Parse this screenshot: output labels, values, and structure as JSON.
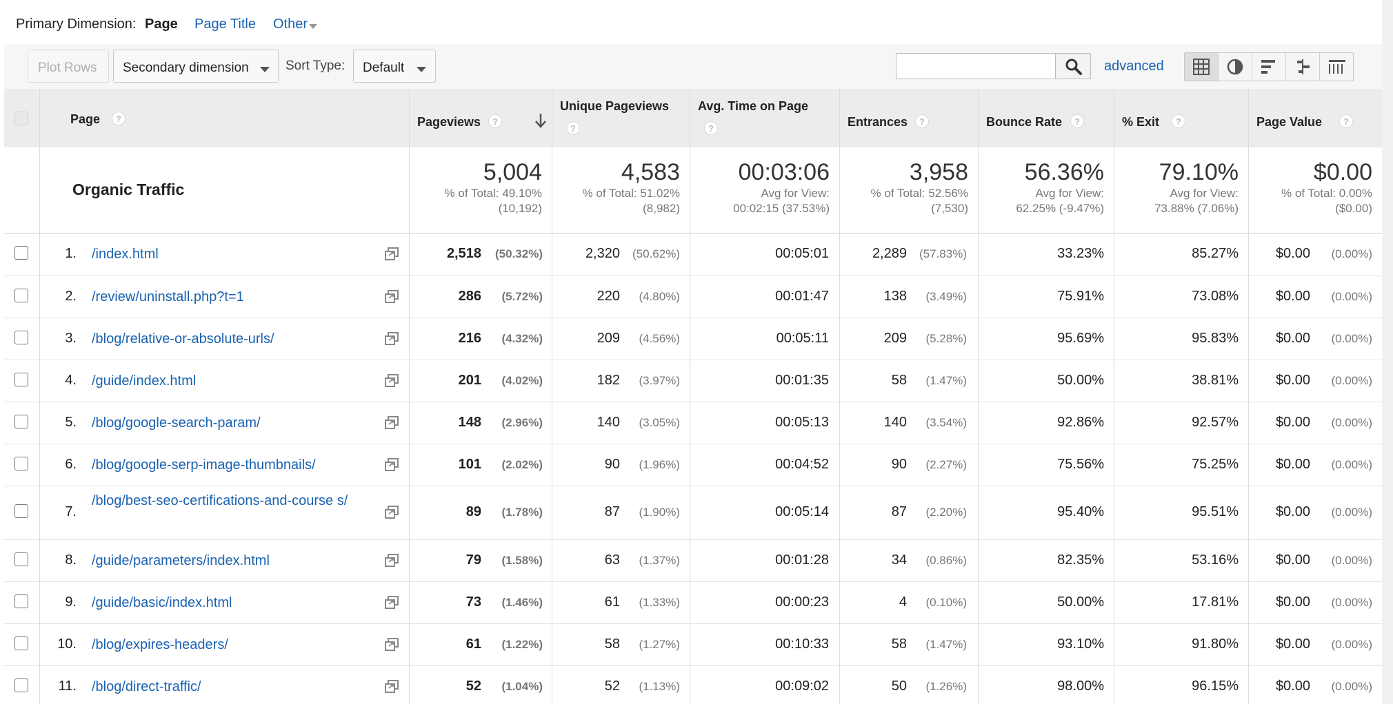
{
  "primary_dimension": {
    "label": "Primary Dimension:",
    "current": "Page",
    "options": [
      "Page Title",
      "Other"
    ]
  },
  "toolbar": {
    "plot_rows": "Plot Rows",
    "secondary_dimension": "Secondary dimension",
    "sort_type_label": "Sort Type:",
    "sort_type_value": "Default",
    "search_value": "",
    "advanced": "advanced",
    "view_icons": [
      "table-view-icon",
      "pie-view-icon",
      "bar-view-icon",
      "comparison-view-icon",
      "pivot-view-icon"
    ]
  },
  "headers": {
    "page": "Page",
    "pageviews": "Pageviews",
    "unique_pageviews": "Unique Pageviews",
    "avg_time": "Avg. Time on Page",
    "entrances": "Entrances",
    "bounce_rate": "Bounce Rate",
    "exit": "% Exit",
    "page_value": "Page Value",
    "help_mark": "?"
  },
  "totals": {
    "label": "Organic Traffic",
    "pageviews": {
      "value": "5,004",
      "line1": "% of Total: 49.10%",
      "line2": "(10,192)"
    },
    "unique_pageviews": {
      "value": "4,583",
      "line1": "% of Total: 51.02%",
      "line2": "(8,982)"
    },
    "avg_time": {
      "value": "00:03:06",
      "line1": "Avg for View:",
      "line2": "00:02:15 (37.53%)"
    },
    "entrances": {
      "value": "3,958",
      "line1": "% of Total: 52.56%",
      "line2": "(7,530)"
    },
    "bounce_rate": {
      "value": "56.36%",
      "line1": "Avg for View:",
      "line2": "62.25% (-9.47%)"
    },
    "exit": {
      "value": "79.10%",
      "line1": "Avg for View:",
      "line2": "73.88% (7.06%)"
    },
    "page_value": {
      "value": "$0.00",
      "line1": "% of Total: 0.00%",
      "line2": "($0.00)"
    }
  },
  "rows": [
    {
      "num": "1.",
      "page": "/index.html",
      "pv": "2,518",
      "pv_pct": "(50.32%)",
      "upv": "2,320",
      "upv_pct": "(50.62%)",
      "time": "00:05:01",
      "ent": "2,289",
      "ent_pct": "(57.83%)",
      "bounce": "33.23%",
      "exit": "85.27%",
      "value": "$0.00",
      "value_pct": "(0.00%)"
    },
    {
      "num": "2.",
      "page": "/review/uninstall.php?t=1",
      "pv": "286",
      "pv_pct": "(5.72%)",
      "upv": "220",
      "upv_pct": "(4.80%)",
      "time": "00:01:47",
      "ent": "138",
      "ent_pct": "(3.49%)",
      "bounce": "75.91%",
      "exit": "73.08%",
      "value": "$0.00",
      "value_pct": "(0.00%)"
    },
    {
      "num": "3.",
      "page": "/blog/relative-or-absolute-urls/",
      "pv": "216",
      "pv_pct": "(4.32%)",
      "upv": "209",
      "upv_pct": "(4.56%)",
      "time": "00:05:11",
      "ent": "209",
      "ent_pct": "(5.28%)",
      "bounce": "95.69%",
      "exit": "95.83%",
      "value": "$0.00",
      "value_pct": "(0.00%)"
    },
    {
      "num": "4.",
      "page": "/guide/index.html",
      "pv": "201",
      "pv_pct": "(4.02%)",
      "upv": "182",
      "upv_pct": "(3.97%)",
      "time": "00:01:35",
      "ent": "58",
      "ent_pct": "(1.47%)",
      "bounce": "50.00%",
      "exit": "38.81%",
      "value": "$0.00",
      "value_pct": "(0.00%)"
    },
    {
      "num": "5.",
      "page": "/blog/google-search-param/",
      "pv": "148",
      "pv_pct": "(2.96%)",
      "upv": "140",
      "upv_pct": "(3.05%)",
      "time": "00:05:13",
      "ent": "140",
      "ent_pct": "(3.54%)",
      "bounce": "92.86%",
      "exit": "92.57%",
      "value": "$0.00",
      "value_pct": "(0.00%)"
    },
    {
      "num": "6.",
      "page": "/blog/google-serp-image-thumbnails/",
      "pv": "101",
      "pv_pct": "(2.02%)",
      "upv": "90",
      "upv_pct": "(1.96%)",
      "time": "00:04:52",
      "ent": "90",
      "ent_pct": "(2.27%)",
      "bounce": "75.56%",
      "exit": "75.25%",
      "value": "$0.00",
      "value_pct": "(0.00%)"
    },
    {
      "num": "7.",
      "page": "/blog/best-seo-certifications-and-course s/",
      "pv": "89",
      "pv_pct": "(1.78%)",
      "upv": "87",
      "upv_pct": "(1.90%)",
      "time": "00:05:14",
      "ent": "87",
      "ent_pct": "(2.20%)",
      "bounce": "95.40%",
      "exit": "95.51%",
      "value": "$0.00",
      "value_pct": "(0.00%)"
    },
    {
      "num": "8.",
      "page": "/guide/parameters/index.html",
      "pv": "79",
      "pv_pct": "(1.58%)",
      "upv": "63",
      "upv_pct": "(1.37%)",
      "time": "00:01:28",
      "ent": "34",
      "ent_pct": "(0.86%)",
      "bounce": "82.35%",
      "exit": "53.16%",
      "value": "$0.00",
      "value_pct": "(0.00%)"
    },
    {
      "num": "9.",
      "page": "/guide/basic/index.html",
      "pv": "73",
      "pv_pct": "(1.46%)",
      "upv": "61",
      "upv_pct": "(1.33%)",
      "time": "00:00:23",
      "ent": "4",
      "ent_pct": "(0.10%)",
      "bounce": "50.00%",
      "exit": "17.81%",
      "value": "$0.00",
      "value_pct": "(0.00%)"
    },
    {
      "num": "10.",
      "page": "/blog/expires-headers/",
      "pv": "61",
      "pv_pct": "(1.22%)",
      "upv": "58",
      "upv_pct": "(1.27%)",
      "time": "00:10:33",
      "ent": "58",
      "ent_pct": "(1.47%)",
      "bounce": "93.10%",
      "exit": "91.80%",
      "value": "$0.00",
      "value_pct": "(0.00%)"
    },
    {
      "num": "11.",
      "page": "/blog/direct-traffic/",
      "pv": "52",
      "pv_pct": "(1.04%)",
      "upv": "52",
      "upv_pct": "(1.13%)",
      "time": "00:09:02",
      "ent": "50",
      "ent_pct": "(1.26%)",
      "bounce": "98.00%",
      "exit": "96.15%",
      "value": "$0.00",
      "value_pct": "(0.00%)"
    }
  ],
  "colors": {
    "link": "#1a62b0",
    "header_bg": "#ececec",
    "muted": "#777777"
  }
}
